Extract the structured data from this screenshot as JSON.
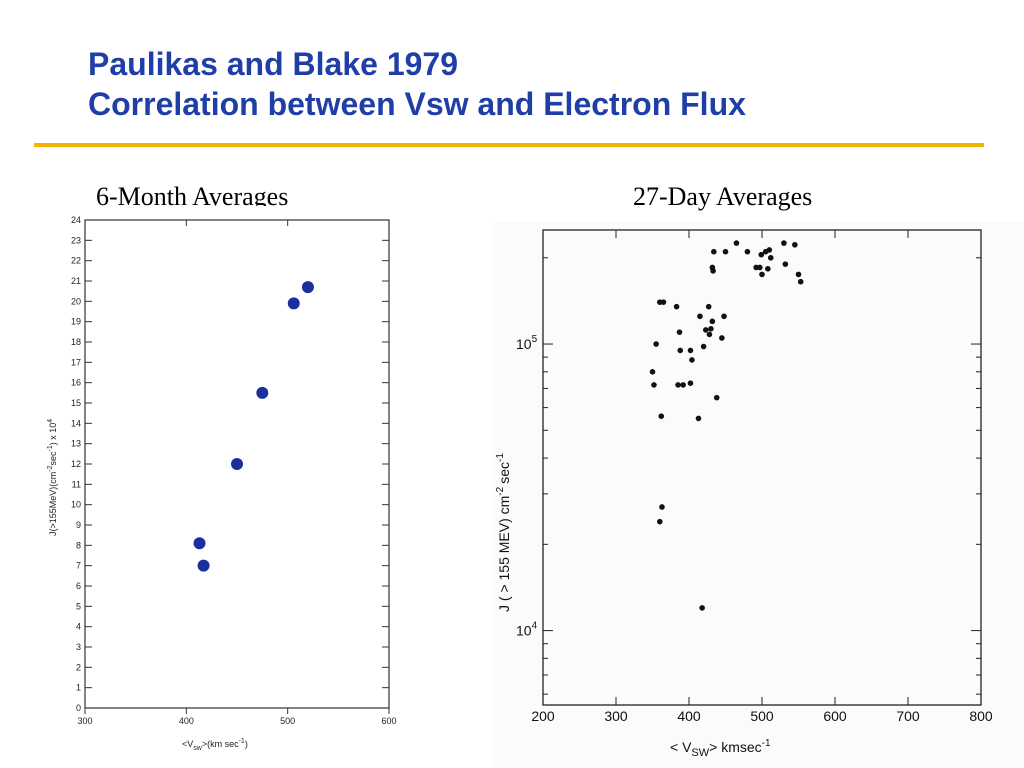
{
  "slide": {
    "title_line1": "Paulikas and Blake 1979",
    "title_line2": "Correlation between Vsw and Electron Flux",
    "accent_color": "#1f3ea8",
    "rule_color": "#f0b400"
  },
  "chart_data": [
    {
      "type": "scatter",
      "caption": "6-Month Averages",
      "xlabel": "<V",
      "xlabel_sub": "sw",
      "xlabel_tail": ">(km sec",
      "xlabel_sup": "-1",
      "xlabel_close": ")",
      "ylabel": "J(>155MeV)(cm",
      "ylabel_sup1": "-2",
      "ylabel_mid": "sec",
      "ylabel_sup2": "-1",
      "ylabel_tail": ") x 10",
      "ylabel_sup3": "4",
      "x_ticks": [
        "300",
        "400",
        "500",
        "600"
      ],
      "y_ticks": [
        "0",
        "1",
        "2",
        "3",
        "4",
        "5",
        "6",
        "7",
        "8",
        "9",
        "10",
        "11",
        "12",
        "13",
        "14",
        "15",
        "16",
        "17",
        "18",
        "19",
        "20",
        "21",
        "22",
        "23",
        "24"
      ],
      "xlim": [
        300,
        600
      ],
      "ylim": [
        0,
        24
      ],
      "point_color": "#1b2f9e",
      "points": [
        {
          "x": 413,
          "y": 8.1
        },
        {
          "x": 417,
          "y": 7.0
        },
        {
          "x": 450,
          "y": 12.0
        },
        {
          "x": 475,
          "y": 15.5
        },
        {
          "x": 506,
          "y": 19.9
        },
        {
          "x": 520,
          "y": 20.7
        }
      ]
    },
    {
      "type": "scatter",
      "caption": "27-Day Averages",
      "yscale": "log",
      "xlabel": "< V",
      "xlabel_sub": "SW",
      "xlabel_tail": "> kmsec",
      "xlabel_sup": "-1",
      "ylabel": "J ( > 155 MEV) cm",
      "ylabel_sup1": "-2",
      "ylabel_tail": "sec",
      "ylabel_sup2": "-1",
      "x_ticks": [
        "200",
        "300",
        "400",
        "500",
        "600",
        "700",
        "800"
      ],
      "y_ticks": [
        {
          "base": "10",
          "exp": "4",
          "value": 10000
        },
        {
          "base": "10",
          "exp": "5",
          "value": 100000
        }
      ],
      "xlim": [
        200,
        800
      ],
      "ylim": [
        5500,
        250000
      ],
      "point_color": "#111111",
      "points": [
        {
          "x": 365,
          "y": 140000
        },
        {
          "x": 360,
          "y": 140000
        },
        {
          "x": 355,
          "y": 100000
        },
        {
          "x": 350,
          "y": 80000
        },
        {
          "x": 352,
          "y": 72000
        },
        {
          "x": 362,
          "y": 56000
        },
        {
          "x": 383,
          "y": 135000
        },
        {
          "x": 387,
          "y": 110000
        },
        {
          "x": 388,
          "y": 95000
        },
        {
          "x": 385,
          "y": 72000
        },
        {
          "x": 392,
          "y": 72000
        },
        {
          "x": 402,
          "y": 95000
        },
        {
          "x": 404,
          "y": 88000
        },
        {
          "x": 402,
          "y": 73000
        },
        {
          "x": 413,
          "y": 55000
        },
        {
          "x": 420,
          "y": 98000
        },
        {
          "x": 415,
          "y": 125000
        },
        {
          "x": 427,
          "y": 135000
        },
        {
          "x": 423,
          "y": 112000
        },
        {
          "x": 430,
          "y": 113000
        },
        {
          "x": 432,
          "y": 120000
        },
        {
          "x": 428,
          "y": 108000
        },
        {
          "x": 445,
          "y": 105000
        },
        {
          "x": 448,
          "y": 125000
        },
        {
          "x": 438,
          "y": 65000
        },
        {
          "x": 432,
          "y": 185000
        },
        {
          "x": 433,
          "y": 180000
        },
        {
          "x": 434,
          "y": 210000
        },
        {
          "x": 450,
          "y": 210000
        },
        {
          "x": 465,
          "y": 225000
        },
        {
          "x": 480,
          "y": 210000
        },
        {
          "x": 492,
          "y": 185000
        },
        {
          "x": 499,
          "y": 205000
        },
        {
          "x": 505,
          "y": 210000
        },
        {
          "x": 510,
          "y": 213000
        },
        {
          "x": 512,
          "y": 200000
        },
        {
          "x": 497,
          "y": 185000
        },
        {
          "x": 500,
          "y": 175000
        },
        {
          "x": 508,
          "y": 183000
        },
        {
          "x": 530,
          "y": 225000
        },
        {
          "x": 545,
          "y": 222000
        },
        {
          "x": 532,
          "y": 190000
        },
        {
          "x": 550,
          "y": 175000
        },
        {
          "x": 553,
          "y": 165000
        },
        {
          "x": 363,
          "y": 27000
        },
        {
          "x": 360,
          "y": 24000
        },
        {
          "x": 418,
          "y": 12000
        }
      ]
    }
  ]
}
